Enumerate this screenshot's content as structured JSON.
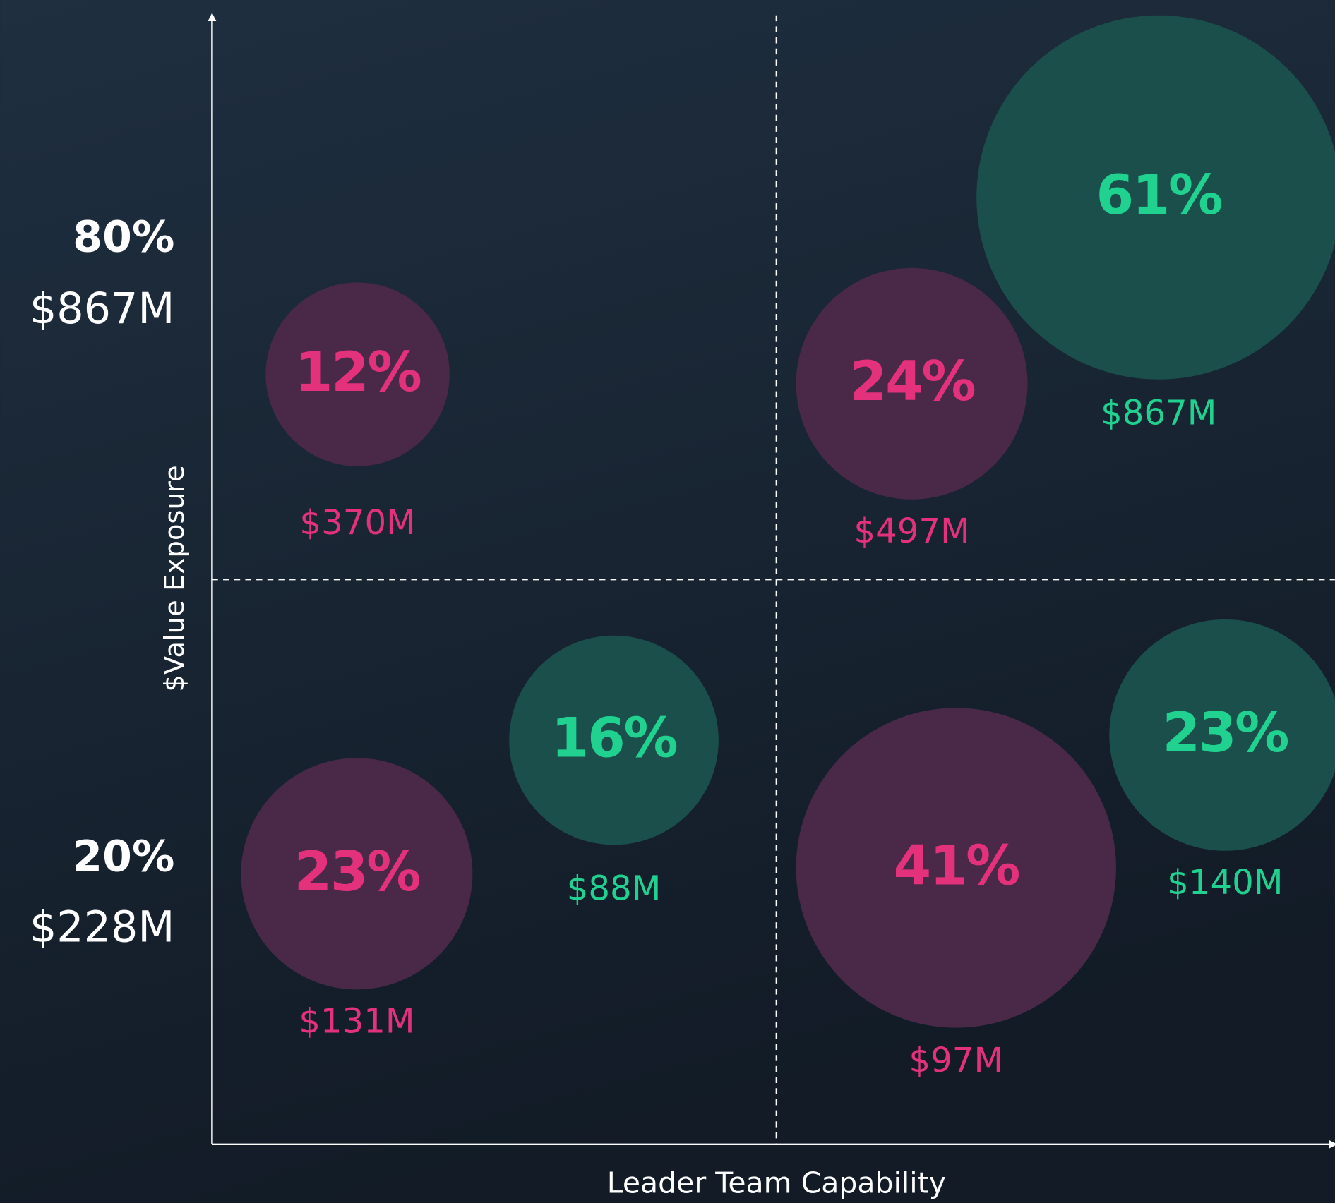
{
  "axes": {
    "y_label": "$Value Exposure",
    "x_label": "Leader Team Capability"
  },
  "row_labels": [
    {
      "percent": "80%",
      "amount": "$867M"
    },
    {
      "percent": "20%",
      "amount": "$228M"
    }
  ],
  "bubbles": [
    {
      "percent": "12%",
      "amount": "$370M",
      "tone": "pink"
    },
    {
      "percent": "24%",
      "amount": "$497M",
      "tone": "pink"
    },
    {
      "percent": "61%",
      "amount": "$867M",
      "tone": "green"
    },
    {
      "percent": "16%",
      "amount": "$88M",
      "tone": "green"
    },
    {
      "percent": "23%",
      "amount": "$131M",
      "tone": "pink"
    },
    {
      "percent": "41%",
      "amount": "$97M",
      "tone": "pink"
    },
    {
      "percent": "23%",
      "amount": "$140M",
      "tone": "green"
    }
  ]
}
